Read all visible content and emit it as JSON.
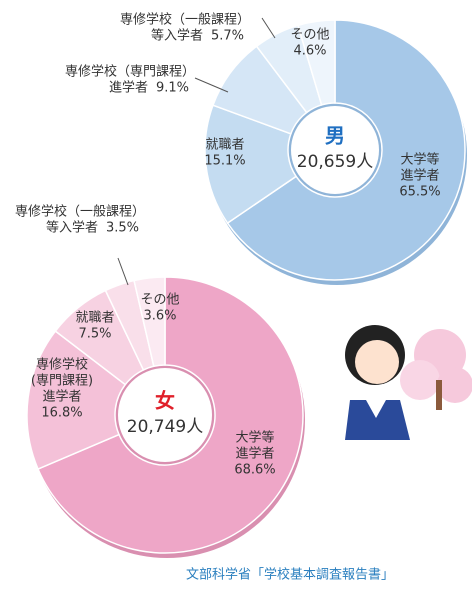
{
  "chart_data": [
    {
      "type": "pie",
      "title": "男",
      "center_text": "20,659人",
      "title_color": "#1f6fc1",
      "categories": [
        [
          "大学等",
          "進学者"
        ],
        [
          "就職者"
        ],
        [
          "専修学校（専門課程）",
          "進学者"
        ],
        [
          "専修学校（一般課程）",
          "等入学者"
        ],
        [
          "その他"
        ]
      ],
      "values": [
        65.5,
        15.1,
        9.1,
        5.7,
        4.6
      ],
      "value_labels": [
        "65.5%",
        "15.1%",
        "9.1%",
        "5.7%",
        "4.6%"
      ],
      "colors": [
        "#a6c8e8",
        "#c4dcf1",
        "#d5e6f6",
        "#e2eef9",
        "#eef5fc"
      ]
    },
    {
      "type": "pie",
      "title": "女",
      "center_text": "20,749人",
      "title_color": "#e0202a",
      "categories": [
        [
          "大学等",
          "進学者"
        ],
        [
          "専修学校",
          "(専門課程)",
          "進学者"
        ],
        [
          "就職者"
        ],
        [
          "専修学校（一般課程）",
          "等入学者"
        ],
        [
          "その他"
        ]
      ],
      "values": [
        68.6,
        16.8,
        7.5,
        3.5,
        3.6
      ],
      "value_labels": [
        "68.6%",
        "16.8%",
        "7.5%",
        "3.5%",
        "3.6%"
      ],
      "colors": [
        "#eea6c7",
        "#f4c1d8",
        "#f7d2e2",
        "#f9dfea",
        "#fbeaf2"
      ]
    }
  ],
  "source": "文部科学省「学校基本調査報告書」"
}
